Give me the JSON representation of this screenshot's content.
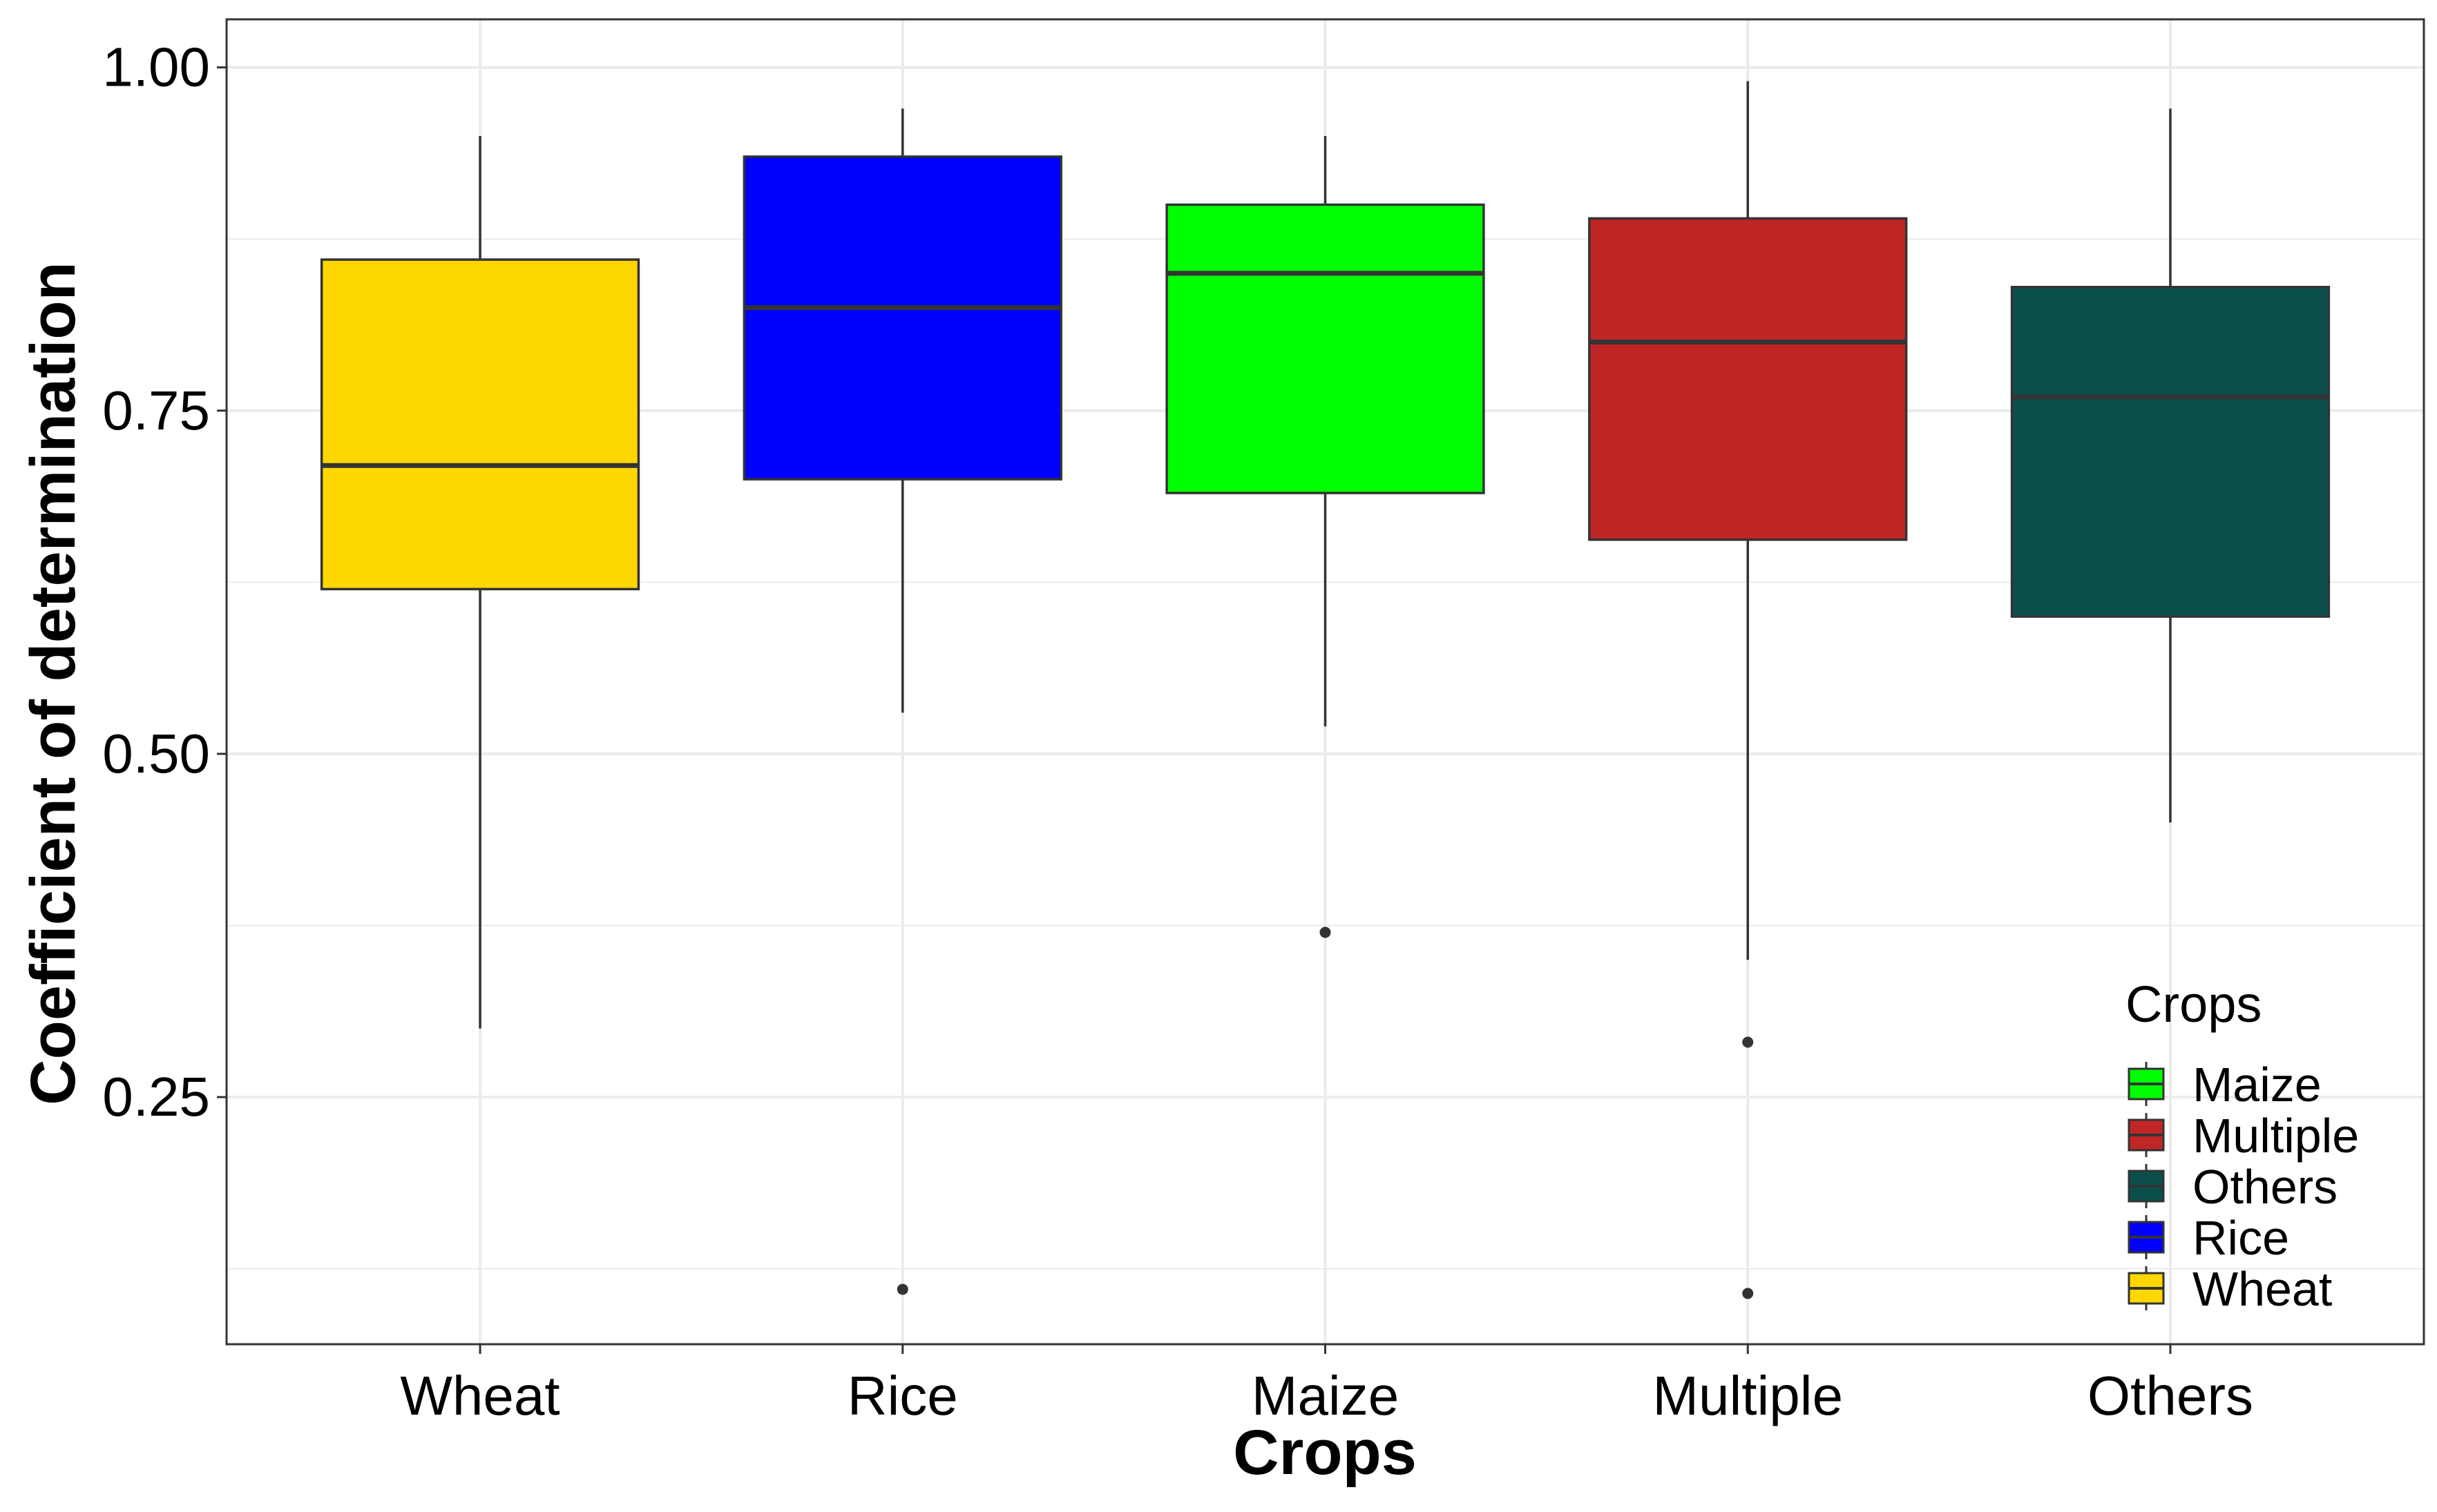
{
  "chart_data": {
    "type": "boxplot",
    "title": "",
    "xlabel": "Crops",
    "ylabel": "Coefficient of determination",
    "ylim": [
      0.07,
      1.035
    ],
    "yticks": [
      0.25,
      0.5,
      0.75,
      1.0
    ],
    "ytick_labels": [
      "0.25",
      "0.50",
      "0.75",
      "1.00"
    ],
    "grid": true,
    "categories": [
      "Wheat",
      "Rice",
      "Maize",
      "Multiple",
      "Others"
    ],
    "boxes": [
      {
        "category": "Wheat",
        "color": "#FFD700",
        "lower_whisker": 0.3,
        "q1": 0.62,
        "median": 0.71,
        "q3": 0.86,
        "upper_whisker": 0.95,
        "outliers": []
      },
      {
        "category": "Rice",
        "color": "#0000FF",
        "lower_whisker": 0.53,
        "q1": 0.7,
        "median": 0.825,
        "q3": 0.935,
        "upper_whisker": 0.97,
        "outliers": [
          0.11
        ]
      },
      {
        "category": "Maize",
        "color": "#00FF00",
        "lower_whisker": 0.52,
        "q1": 0.69,
        "median": 0.85,
        "q3": 0.9,
        "upper_whisker": 0.95,
        "outliers": [
          0.37
        ]
      },
      {
        "category": "Multiple",
        "color": "#C02626",
        "lower_whisker": 0.35,
        "q1": 0.656,
        "median": 0.8,
        "q3": 0.89,
        "upper_whisker": 0.99,
        "outliers": [
          0.29,
          0.107
        ]
      },
      {
        "category": "Others",
        "color": "#0B4F4C",
        "lower_whisker": 0.45,
        "q1": 0.6,
        "median": 0.76,
        "q3": 0.84,
        "upper_whisker": 0.97,
        "outliers": []
      }
    ],
    "legend": {
      "title": "Crops",
      "position": "bottom-right",
      "items": [
        {
          "label": "Maize",
          "color": "#00FF00"
        },
        {
          "label": "Multiple",
          "color": "#C02626"
        },
        {
          "label": "Others",
          "color": "#0B4F4C"
        },
        {
          "label": "Rice",
          "color": "#0000FF"
        },
        {
          "label": "Wheat",
          "color": "#FFD700"
        }
      ]
    }
  }
}
